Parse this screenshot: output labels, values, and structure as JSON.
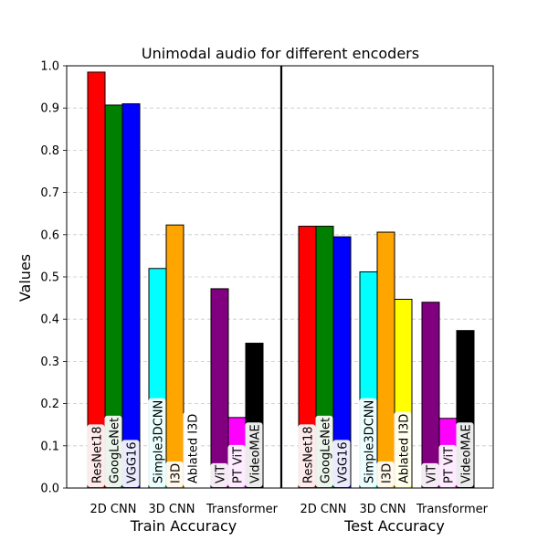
{
  "chart_data": {
    "type": "bar",
    "title": "Unimodal audio for different encoders",
    "ylabel": "Values",
    "xlabel": "",
    "ylim": [
      0,
      1.0
    ],
    "yticks": [
      "0.0",
      "0.1",
      "0.2",
      "0.3",
      "0.4",
      "0.5",
      "0.6",
      "0.7",
      "0.8",
      "0.9",
      "1.0"
    ],
    "grid": "horizontal dashed",
    "groups": [
      "Train Accuracy",
      "Test Accuracy"
    ],
    "subgroups": [
      "2D CNN",
      "3D CNN",
      "Transformer"
    ],
    "encoders": [
      {
        "name": "ResNet18",
        "subgroup": "2D CNN",
        "color": "#ff0000"
      },
      {
        "name": "GoogLeNet",
        "subgroup": "2D CNN",
        "color": "#008000"
      },
      {
        "name": "VGG16",
        "subgroup": "2D CNN",
        "color": "#0000ff"
      },
      {
        "name": "Simple3DCNN",
        "subgroup": "3D CNN",
        "color": "#00ffff"
      },
      {
        "name": "I3D",
        "subgroup": "3D CNN",
        "color": "#ffa500"
      },
      {
        "name": "Ablated I3D",
        "subgroup": "3D CNN",
        "color": "#ffff00"
      },
      {
        "name": "ViT",
        "subgroup": "Transformer",
        "color": "#800080"
      },
      {
        "name": "PT ViT",
        "subgroup": "Transformer",
        "color": "#ff00ff"
      },
      {
        "name": "VideoMAE",
        "subgroup": "Transformer",
        "color": "#000000"
      }
    ],
    "series": [
      {
        "name": "Train Accuracy",
        "values": [
          0.985,
          0.907,
          0.91,
          0.52,
          0.623,
          0.0,
          0.472,
          0.167,
          0.343
        ]
      },
      {
        "name": "Test Accuracy",
        "values": [
          0.62,
          0.62,
          0.595,
          0.512,
          0.606,
          0.447,
          0.44,
          0.165,
          0.373
        ]
      }
    ]
  }
}
